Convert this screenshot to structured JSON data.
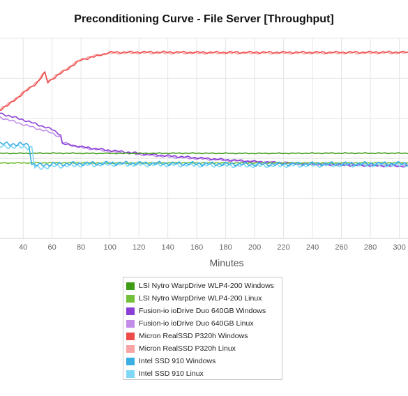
{
  "chart_data": {
    "type": "line",
    "title": "Preconditioning Curve - File Server [Throughput]",
    "xlabel": "Minutes",
    "ylabel": "",
    "xlim": [
      24,
      306
    ],
    "xticks": [
      40,
      60,
      80,
      100,
      120,
      140,
      160,
      180,
      200,
      220,
      240,
      260,
      280,
      300
    ],
    "ylim": [
      0,
      100
    ],
    "grid": true,
    "legend_position": "bottom",
    "series": [
      {
        "name": "LSI Nytro WarpDrive WLP4-200 Windows",
        "color": "#3d9b16",
        "points": [
          [
            24,
            42.5
          ],
          [
            60,
            42.6
          ],
          [
            100,
            42.5
          ],
          [
            150,
            42.6
          ],
          [
            200,
            42.5
          ],
          [
            250,
            42.6
          ],
          [
            306,
            42.6
          ]
        ]
      },
      {
        "name": "LSI Nytro WarpDrive WLP4-200 Linux",
        "color": "#72c03a",
        "points": [
          [
            24,
            37.7
          ],
          [
            60,
            37.8
          ],
          [
            100,
            37.7
          ],
          [
            150,
            37.8
          ],
          [
            200,
            37.7
          ],
          [
            250,
            37.7
          ],
          [
            306,
            37.8
          ]
        ]
      },
      {
        "name": "Fusion-io ioDrive Duo 640GB Windows",
        "color": "#8a3fd6",
        "points": [
          [
            24,
            62.5
          ],
          [
            40,
            59.3
          ],
          [
            60,
            54.5
          ],
          [
            66,
            51.8
          ],
          [
            67,
            47.3
          ],
          [
            80,
            45.8
          ],
          [
            100,
            44.0
          ],
          [
            120,
            42.5
          ],
          [
            140,
            41.3
          ],
          [
            160,
            40.3
          ],
          [
            180,
            39.3
          ],
          [
            200,
            38.4
          ],
          [
            220,
            37.7
          ],
          [
            240,
            37.1
          ],
          [
            260,
            36.7
          ],
          [
            280,
            36.4
          ],
          [
            306,
            36.1
          ]
        ]
      },
      {
        "name": "Fusion-io ioDrive Duo 640GB Linux",
        "color": "#c18de9",
        "points": [
          [
            24,
            60.5
          ],
          [
            40,
            57.0
          ],
          [
            60,
            52.7
          ],
          [
            66,
            50.5
          ],
          [
            67,
            48.0
          ],
          [
            80,
            45.5
          ],
          [
            100,
            43.5
          ],
          [
            120,
            42.0
          ],
          [
            140,
            40.8
          ],
          [
            160,
            39.9
          ],
          [
            180,
            39.1
          ],
          [
            200,
            38.3
          ],
          [
            220,
            37.8
          ],
          [
            240,
            37.3
          ],
          [
            260,
            37.0
          ],
          [
            280,
            36.7
          ],
          [
            306,
            36.4
          ]
        ]
      },
      {
        "name": "Micron RealSSD P320h Windows",
        "color": "#ef4b4b",
        "points": [
          [
            24,
            64.3
          ],
          [
            30,
            66.8
          ],
          [
            40,
            72.5
          ],
          [
            50,
            78.0
          ],
          [
            55,
            82.8
          ],
          [
            57,
            78.0
          ],
          [
            60,
            79.6
          ],
          [
            70,
            84.4
          ],
          [
            80,
            89.2
          ],
          [
            90,
            91.0
          ],
          [
            100,
            93.0
          ],
          [
            120,
            93.1
          ],
          [
            140,
            93.1
          ],
          [
            160,
            93.0
          ],
          [
            200,
            93.0
          ],
          [
            250,
            93.0
          ],
          [
            306,
            93.1
          ]
        ]
      },
      {
        "name": "Micron RealSSD P320h Linux",
        "color": "#f8a4a4",
        "points": [
          [
            24,
            64.8
          ],
          [
            30,
            67.3
          ],
          [
            40,
            73.0
          ],
          [
            50,
            78.6
          ],
          [
            55,
            83.3
          ],
          [
            57,
            78.5
          ],
          [
            60,
            80.1
          ],
          [
            70,
            84.9
          ],
          [
            80,
            89.6
          ],
          [
            90,
            91.4
          ],
          [
            100,
            92.6
          ],
          [
            120,
            92.7
          ],
          [
            160,
            92.6
          ],
          [
            200,
            92.6
          ],
          [
            250,
            92.6
          ],
          [
            306,
            92.7
          ]
        ]
      },
      {
        "name": "Intel SSD 910 Windows",
        "color": "#3baee4",
        "points": [
          [
            24,
            47.3
          ],
          [
            32,
            47.2
          ],
          [
            40,
            47.0
          ],
          [
            44,
            46.9
          ],
          [
            46,
            37.0
          ],
          [
            50,
            36.6
          ],
          [
            60,
            37.1
          ],
          [
            80,
            37.4
          ],
          [
            100,
            37.6
          ],
          [
            150,
            37.4
          ],
          [
            200,
            37.0
          ],
          [
            250,
            37.3
          ],
          [
            306,
            37.4
          ]
        ]
      },
      {
        "name": "Intel SSD 910 Linux",
        "color": "#7fd8f6",
        "points": [
          [
            24,
            45.8
          ],
          [
            32,
            45.8
          ],
          [
            40,
            45.6
          ],
          [
            46,
            45.5
          ],
          [
            48,
            35.5
          ],
          [
            52,
            35.2
          ],
          [
            60,
            36.0
          ],
          [
            80,
            36.6
          ],
          [
            100,
            37.0
          ],
          [
            150,
            36.7
          ],
          [
            200,
            36.3
          ],
          [
            250,
            36.6
          ],
          [
            306,
            36.8
          ]
        ]
      }
    ]
  }
}
